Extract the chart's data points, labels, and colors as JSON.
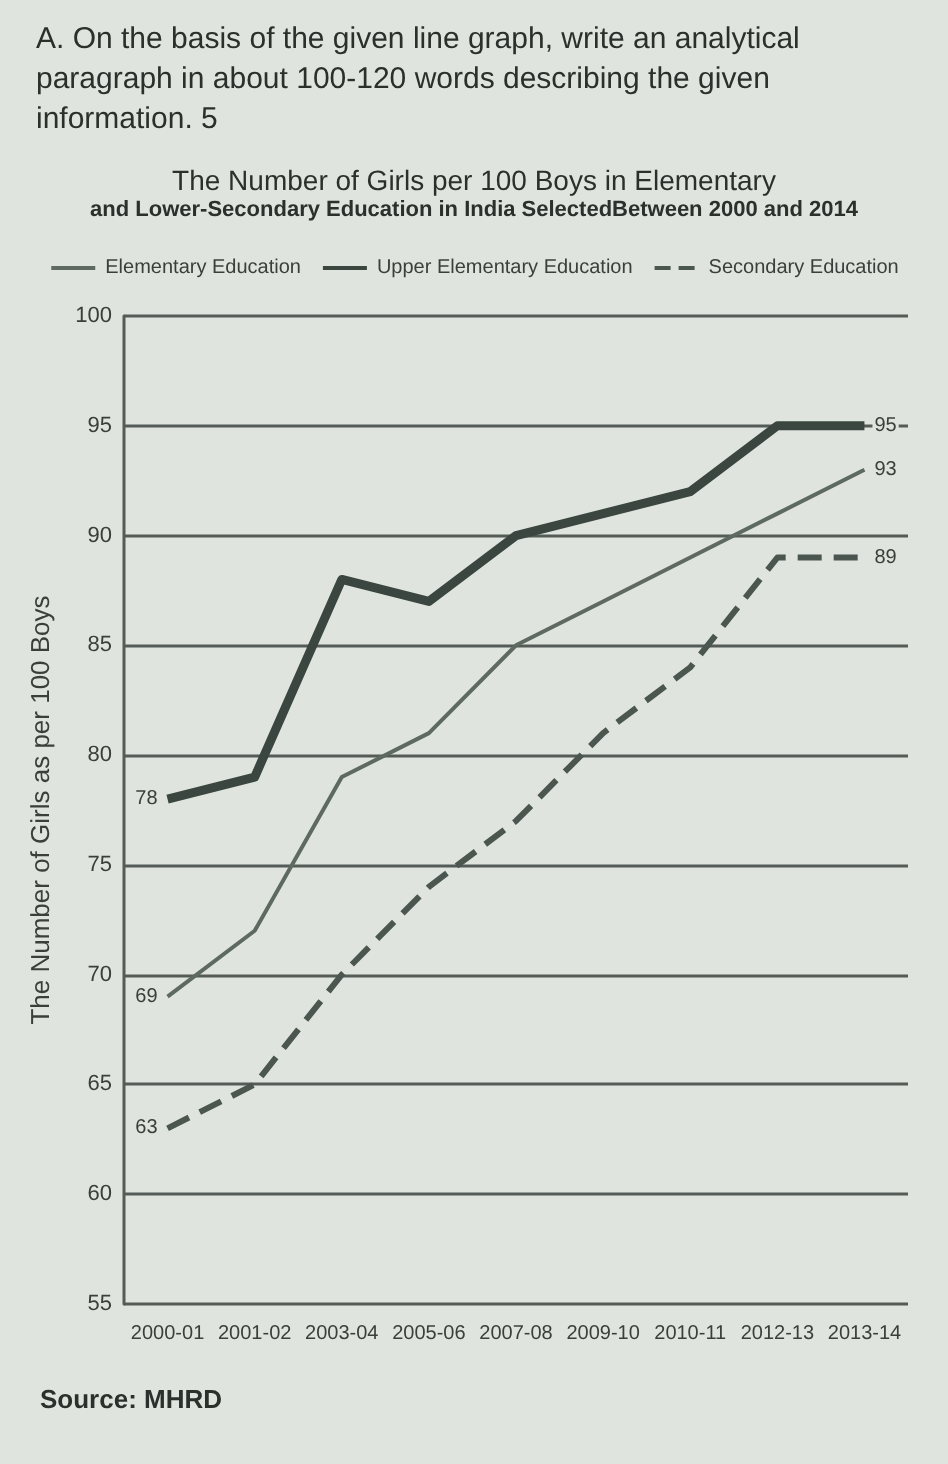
{
  "chart_data": {
    "type": "line",
    "title": "The Number of Girls per 100 Boys in Elementary",
    "subtitle": "and Lower-Secondary Education in India SelectedBetween 2000 and 2014",
    "ylabel": "The Number of Girls as per 100 Boys",
    "annotations": [
      "A. On the basis of the given line graph, write an analytical paragraph in about 100-120 words describing the given information. 5",
      "Source: MHRD"
    ],
    "categories": [
      "2000-01",
      "2001-02",
      "2003-04",
      "2005-06",
      "2007-08",
      "2009-10",
      "2010-11",
      "2012-13",
      "2013-14"
    ],
    "series": [
      {
        "name": "Elementary Education",
        "color": "#5e6962",
        "line_style": "solid",
        "values": [
          69,
          72,
          79,
          81,
          85,
          87,
          89,
          91,
          93
        ],
        "value_labels": [
          "69",
          null,
          null,
          null,
          null,
          null,
          null,
          null,
          "93"
        ]
      },
      {
        "name": "Upper Elementary Education",
        "color": "#3a463f",
        "line_style": "solid",
        "values": [
          78,
          79,
          88,
          87,
          90,
          91,
          92,
          95,
          95
        ],
        "value_labels": [
          "78",
          null,
          null,
          null,
          null,
          null,
          null,
          null,
          "95"
        ]
      },
      {
        "name": "Secondary Education",
        "color": "#4b5650",
        "line_style": "dashed",
        "values": [
          63,
          65,
          70,
          74,
          77,
          81,
          84,
          89,
          89
        ],
        "value_labels": [
          "63",
          null,
          null,
          null,
          null,
          null,
          null,
          null,
          "89"
        ]
      }
    ],
    "ylim": [
      55,
      100
    ],
    "yticks": [
      55,
      60,
      65,
      70,
      75,
      80,
      85,
      90,
      95,
      100
    ],
    "grid": "y",
    "legend": "top",
    "marker": "none"
  }
}
